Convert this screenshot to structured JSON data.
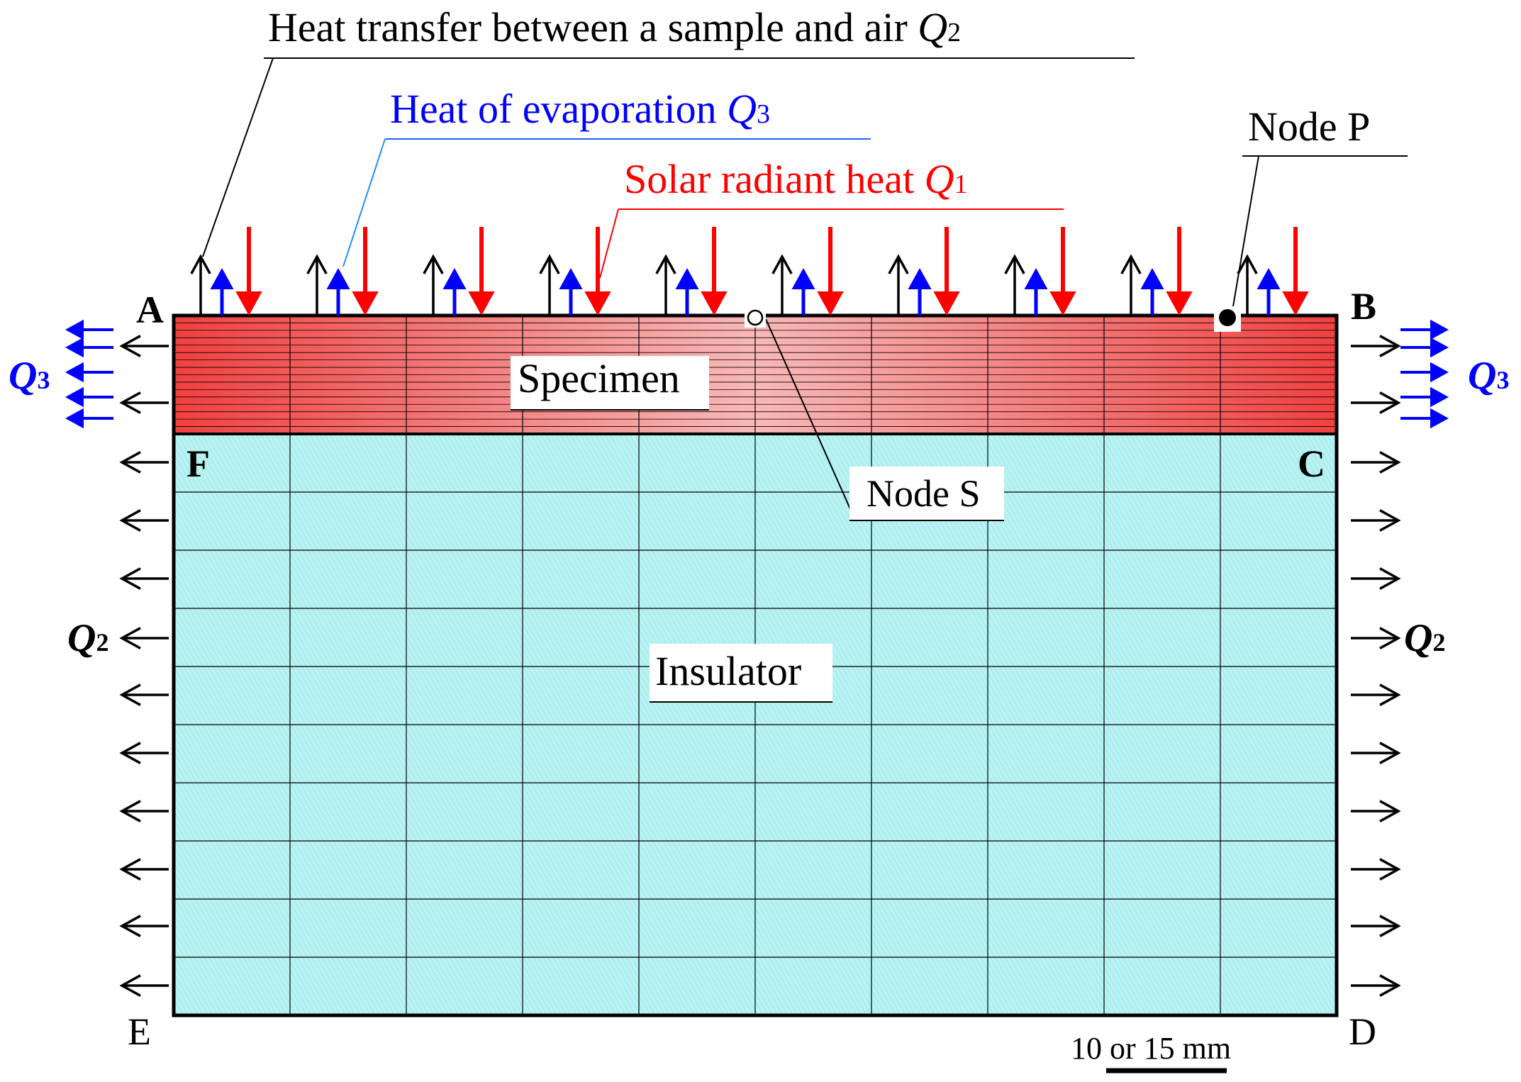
{
  "labels": {
    "q2_title": "Heat transfer between a sample and air ",
    "q2_sym": "Q",
    "q2_sub": "2",
    "q3_title": "Heat of evaporation ",
    "q3_sym": "Q",
    "q3_sub": "3",
    "q1_title": "Solar radiant heat ",
    "q1_sym": "Q",
    "q1_sub": "1",
    "node_p": "Node P",
    "node_s": "Node S",
    "specimen": "Specimen",
    "insulator": "Insulator",
    "side_q3_sym": "Q",
    "side_q3_sub": "3",
    "side_q2_sym": "Q",
    "side_q2_sub": "2",
    "scale": "10 or 15 mm"
  },
  "corners": {
    "a": "A",
    "b": "B",
    "c": "C",
    "d": "D",
    "e": "E",
    "f": "F"
  },
  "colors": {
    "solar": "#ff0000",
    "evaporation": "#0000ff",
    "air": "#000000",
    "specimen": "#f06060",
    "insulator": "#b3f0f0"
  }
}
